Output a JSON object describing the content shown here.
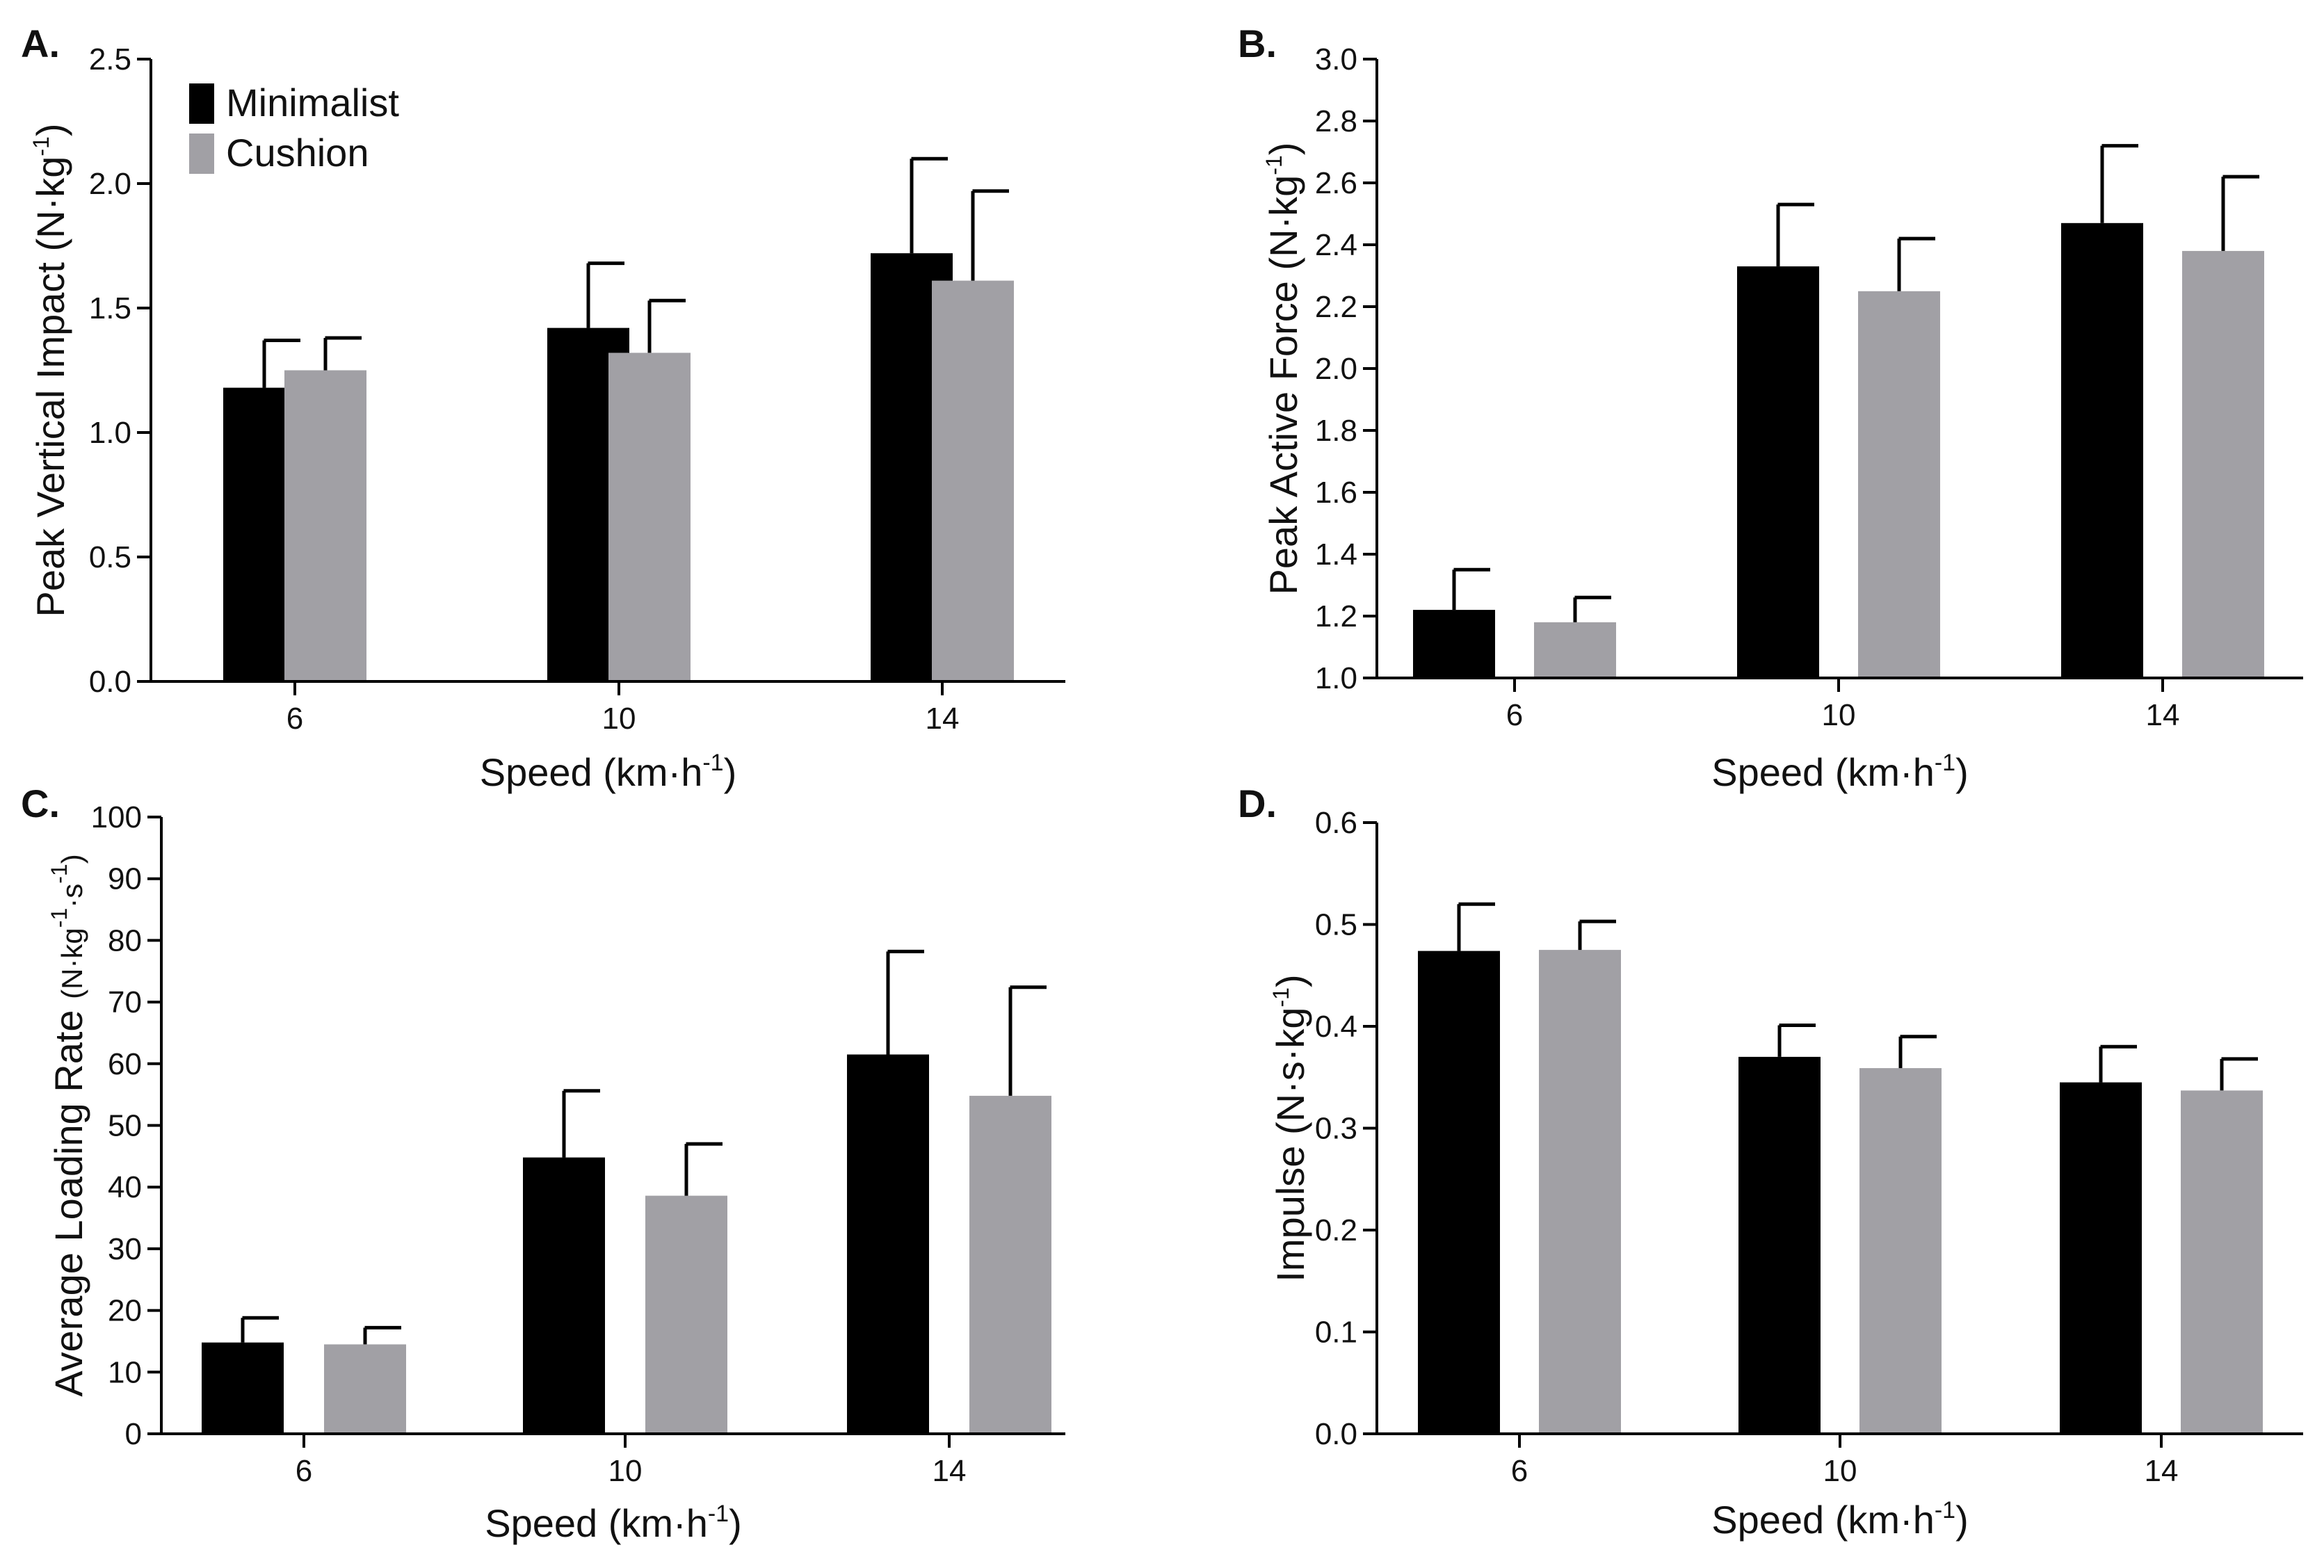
{
  "legend": {
    "placement": "top-left of panel A",
    "items": [
      {
        "label": "Minimalist",
        "color": "#000000"
      },
      {
        "label": "Cushion",
        "color": "#a1a0a5"
      }
    ]
  },
  "chart_data": [
    {
      "type": "bar",
      "panel_label": "A.",
      "categories": [
        "6",
        "10",
        "14"
      ],
      "xlabel": "Speed (km·h",
      "xlabel_sup": "-1",
      "xlabel_end": ")",
      "ylabel": "Peak Vertical Impact (N·kg",
      "ylabel_sup": "-1",
      "ylabel_end": ")",
      "ylim": [
        0,
        2.5
      ],
      "yticks": [
        "0.0",
        "0.5",
        "1.0",
        "1.5",
        "2.0",
        "2.5"
      ],
      "series": [
        {
          "name": "Minimalist",
          "color": "#000000",
          "values": [
            1.18,
            1.42,
            1.72
          ],
          "errors": [
            0.19,
            0.26,
            0.38
          ]
        },
        {
          "name": "Cushion",
          "color": "#a1a0a5",
          "values": [
            1.25,
            1.32,
            1.61
          ],
          "errors": [
            0.13,
            0.21,
            0.36
          ]
        }
      ]
    },
    {
      "type": "bar",
      "panel_label": "B.",
      "categories": [
        "6",
        "10",
        "14"
      ],
      "xlabel": "Speed (km·h",
      "xlabel_sup": "-1",
      "xlabel_end": ")",
      "ylabel": "Peak Active Force  (N·kg",
      "ylabel_sup": "-1",
      "ylabel_end": ")",
      "ylim": [
        1.0,
        3.0
      ],
      "yticks": [
        "1.0",
        "1.2",
        "1.4",
        "1.6",
        "1.8",
        "2.0",
        "2.2",
        "2.4",
        "2.6",
        "2.8",
        "3.0"
      ],
      "series": [
        {
          "name": "Minimalist",
          "color": "#000000",
          "values": [
            1.22,
            2.33,
            2.47
          ],
          "errors": [
            0.13,
            0.2,
            0.25
          ]
        },
        {
          "name": "Cushion",
          "color": "#a1a0a5",
          "values": [
            1.18,
            2.25,
            2.38
          ],
          "errors": [
            0.08,
            0.17,
            0.24
          ]
        }
      ]
    },
    {
      "type": "bar",
      "panel_label": "C.",
      "categories": [
        "6",
        "10",
        "14"
      ],
      "xlabel": "Speed (km·h",
      "xlabel_sup": "-1",
      "xlabel_end": ")",
      "ylabel": "Average Loading Rate ",
      "ylabel_small": "(N·kg",
      "ylabel_sup": "-1",
      "ylabel_mid": "·s",
      "ylabel_sup2": "-1",
      "ylabel_end": ")",
      "ylim": [
        0,
        100
      ],
      "yticks": [
        "0",
        "10",
        "20",
        "30",
        "40",
        "50",
        "60",
        "70",
        "80",
        "90",
        "100"
      ],
      "series": [
        {
          "name": "Minimalist",
          "color": "#000000",
          "values": [
            14.8,
            44.8,
            61.5
          ],
          "errors": [
            4.0,
            10.8,
            16.7
          ]
        },
        {
          "name": "Cushion",
          "color": "#a1a0a5",
          "values": [
            14.5,
            38.6,
            54.8
          ],
          "errors": [
            2.7,
            8.4,
            17.6
          ]
        }
      ]
    },
    {
      "type": "bar",
      "panel_label": "D.",
      "categories": [
        "6",
        "10",
        "14"
      ],
      "xlabel": "Speed (km·h",
      "xlabel_sup": "-1",
      "xlabel_end": ")",
      "ylabel": "Impulse  (N·s·kg",
      "ylabel_sup": "-1",
      "ylabel_end": ")",
      "ylim": [
        0.0,
        0.6
      ],
      "yticks": [
        "0.0",
        "0.1",
        "0.2",
        "0.3",
        "0.4",
        "0.5",
        "0.6"
      ],
      "series": [
        {
          "name": "Minimalist",
          "color": "#000000",
          "values": [
            0.474,
            0.37,
            0.345
          ],
          "errors": [
            0.046,
            0.031,
            0.035
          ]
        },
        {
          "name": "Cushion",
          "color": "#a1a0a5",
          "values": [
            0.475,
            0.359,
            0.337
          ],
          "errors": [
            0.028,
            0.031,
            0.031
          ]
        }
      ]
    }
  ]
}
